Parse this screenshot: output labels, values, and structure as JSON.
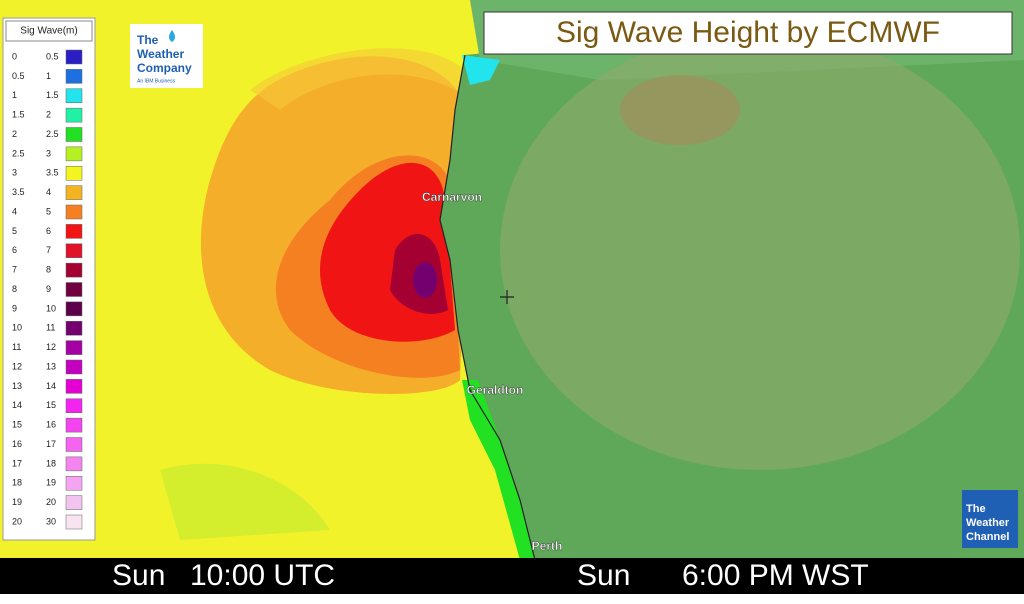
{
  "legend": {
    "title": "Sig Wave(m)",
    "rows": [
      {
        "low": 0,
        "high": 0.5,
        "color": "#2a1fc4"
      },
      {
        "low": 0.5,
        "high": 1,
        "color": "#1e6fe0"
      },
      {
        "low": 1,
        "high": 1.5,
        "color": "#22e4ec"
      },
      {
        "low": 1.5,
        "high": 2,
        "color": "#22f0a4"
      },
      {
        "low": 2,
        "high": 2.5,
        "color": "#22e022"
      },
      {
        "low": 2.5,
        "high": 3,
        "color": "#b4f022"
      },
      {
        "low": 3,
        "high": 3.5,
        "color": "#f4f422"
      },
      {
        "low": 3.5,
        "high": 4,
        "color": "#f4b422"
      },
      {
        "low": 4,
        "high": 5,
        "color": "#f48022"
      },
      {
        "low": 5,
        "high": 6,
        "color": "#f01414"
      },
      {
        "low": 6,
        "high": 7,
        "color": "#e01428"
      },
      {
        "low": 7,
        "high": 8,
        "color": "#a40032"
      },
      {
        "low": 8,
        "high": 9,
        "color": "#700040"
      },
      {
        "low": 9,
        "high": 10,
        "color": "#5c004c"
      },
      {
        "low": 10,
        "high": 11,
        "color": "#740070"
      },
      {
        "low": 11,
        "high": 12,
        "color": "#a400a4"
      },
      {
        "low": 12,
        "high": 13,
        "color": "#c400c0"
      },
      {
        "low": 13,
        "high": 14,
        "color": "#e400d4"
      },
      {
        "low": 14,
        "high": 15,
        "color": "#f424f0"
      },
      {
        "low": 15,
        "high": 16,
        "color": "#f444f0"
      },
      {
        "low": 16,
        "high": 17,
        "color": "#f464f0"
      },
      {
        "low": 17,
        "high": 18,
        "color": "#f484f0"
      },
      {
        "low": 18,
        "high": 19,
        "color": "#f4a4f0"
      },
      {
        "low": 19,
        "high": 20,
        "color": "#f4c4f0"
      },
      {
        "low": 20,
        "high": 30,
        "color": "#f8e4f0"
      }
    ]
  },
  "title": "Sig Wave Height by ECMWF",
  "logo_company": {
    "line1": "The",
    "line2": "Weather",
    "line3": "Company",
    "tagline": "An IBM Business"
  },
  "logo_channel": {
    "line1": "The",
    "line2": "Weather",
    "line3": "Channel"
  },
  "places": [
    "Carnarvon",
    "Geraldton",
    "Perth"
  ],
  "footer": {
    "left_day": "Sun",
    "left_time": "10:00 UTC",
    "right_day": "Sun",
    "right_time": "6:00 PM WST"
  }
}
